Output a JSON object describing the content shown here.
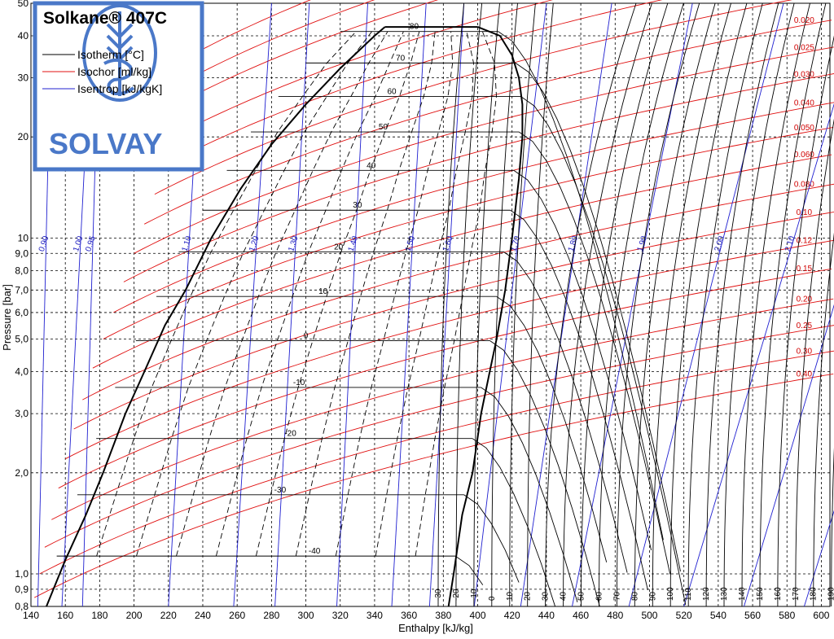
{
  "legend": {
    "title": "Solkane® 407C",
    "isotherm_label": "Isotherm [°C]",
    "isochor_label": "Isochor [ml/kg]",
    "isentrop_label": "Isentrop [kJ/kgK]",
    "brand": "SOLVAY"
  },
  "colors": {
    "isotherm": "#000000",
    "isochor": "#e01010",
    "isentrop": "#2020d0",
    "legend_frame": "#4a78c8",
    "brand": "#4a78c8"
  },
  "chart_data": {
    "type": "line",
    "chart_kind": "pressure-enthalpy diagram",
    "xlabel": "Enthalpy [kJ/kg]",
    "ylabel": "Pressure [bar]",
    "xlim": [
      140,
      605
    ],
    "ylim": [
      0.8,
      50
    ],
    "yscale": "log",
    "grid": true,
    "x_ticks": [
      "140",
      "160",
      "180",
      "200",
      "220",
      "240",
      "260",
      "280",
      "300",
      "320",
      "340",
      "360",
      "380",
      "400",
      "420",
      "440",
      "460",
      "480",
      "500",
      "520",
      "540",
      "560",
      "580",
      "600"
    ],
    "y_ticks": [
      {
        "value": 0.8,
        "label": "0,8"
      },
      {
        "value": 0.9,
        "label": "0,9"
      },
      {
        "value": 1.0,
        "label": "1,0"
      },
      {
        "value": 2.0,
        "label": "2,0"
      },
      {
        "value": 3.0,
        "label": "3,0"
      },
      {
        "value": 4.0,
        "label": "4,0"
      },
      {
        "value": 5.0,
        "label": "5,0"
      },
      {
        "value": 6.0,
        "label": "6,0"
      },
      {
        "value": 7.0,
        "label": "7,0"
      },
      {
        "value": 8.0,
        "label": "8,0"
      },
      {
        "value": 9.0,
        "label": "9,0"
      },
      {
        "value": 10,
        "label": "10"
      },
      {
        "value": 20,
        "label": "20"
      },
      {
        "value": 30,
        "label": "30"
      },
      {
        "value": 40,
        "label": "40"
      },
      {
        "value": 50,
        "label": "50"
      }
    ],
    "saturation_dome": {
      "liquid": [
        [
          149,
          0.8
        ],
        [
          160,
          1.1
        ],
        [
          172,
          1.5
        ],
        [
          182,
          2.0
        ],
        [
          195,
          3.0
        ],
        [
          206,
          4.0
        ],
        [
          218,
          5.5
        ],
        [
          230,
          7.0
        ],
        [
          245,
          10
        ],
        [
          262,
          14
        ],
        [
          280,
          19
        ],
        [
          300,
          25
        ],
        [
          320,
          32
        ],
        [
          340,
          40
        ],
        [
          346,
          42.5
        ]
      ],
      "vapor": [
        [
          383,
          0.8
        ],
        [
          386,
          1.0
        ],
        [
          391,
          1.5
        ],
        [
          397,
          2.0
        ],
        [
          402,
          3.0
        ],
        [
          407,
          4.0
        ],
        [
          411,
          5.0
        ],
        [
          416,
          7.0
        ],
        [
          420,
          10
        ],
        [
          424,
          15
        ],
        [
          426,
          20
        ],
        [
          426,
          25
        ],
        [
          424,
          30
        ],
        [
          420,
          35
        ],
        [
          413,
          40
        ],
        [
          400,
          42.5
        ]
      ],
      "critical_top": [
        [
          346,
          42.5
        ],
        [
          400,
          42.5
        ]
      ]
    },
    "isotherms_two_phase": [
      {
        "t": "-40",
        "p": 1.13,
        "h_liq": 155,
        "h_vap": 387,
        "label_h": 305
      },
      {
        "t": "-30",
        "p": 1.72,
        "h_liq": 167,
        "h_vap": 392,
        "label_h": 285
      },
      {
        "t": "-20",
        "p": 2.53,
        "h_liq": 178,
        "h_vap": 397,
        "label_h": 291
      },
      {
        "t": "-10",
        "p": 3.59,
        "h_liq": 189,
        "h_vap": 402,
        "label_h": 296
      },
      {
        "t": "0",
        "p": 4.95,
        "h_liq": 201,
        "h_vap": 407,
        "label_h": 300
      },
      {
        "t": "10",
        "p": 6.7,
        "h_liq": 213,
        "h_vap": 411,
        "label_h": 310
      },
      {
        "t": "20",
        "p": 9.1,
        "h_liq": 226,
        "h_vap": 415,
        "label_h": 319
      },
      {
        "t": "30",
        "p": 12.1,
        "h_liq": 240,
        "h_vap": 419,
        "label_h": 330
      },
      {
        "t": "40",
        "p": 15.9,
        "h_liq": 254,
        "h_vap": 421,
        "label_h": 338
      },
      {
        "t": "50",
        "p": 20.7,
        "h_liq": 268,
        "h_vap": 424,
        "label_h": 345
      },
      {
        "t": "60",
        "p": 26.4,
        "h_liq": 284,
        "h_vap": 425,
        "label_h": 350
      },
      {
        "t": "70",
        "p": 33.2,
        "h_liq": 300,
        "h_vap": 422,
        "label_h": 355
      },
      {
        "t": "80",
        "p": 41.2,
        "h_liq": 320,
        "h_vap": 412,
        "label_h": 363
      }
    ],
    "isotherms_superheat_bottom_labels": [
      "-30",
      "-20",
      "-10",
      "0",
      "10",
      "20",
      "30",
      "40",
      "50",
      "60",
      "70",
      "80",
      "90",
      "100",
      "110",
      "120",
      "130",
      "140",
      "150",
      "160",
      "170",
      "180",
      "190",
      "200"
    ],
    "isochors": [
      {
        "v": "0.0050",
        "h0": 240,
        "p0": 36.5
      },
      {
        "v": "0.0060",
        "h0": 233,
        "p0": 30.0
      },
      {
        "v": "0.0080",
        "h0": 228,
        "p0": 25.5
      },
      {
        "v": "0.0100",
        "h0": 222,
        "p0": 20.0
      },
      {
        "v": "0.012",
        "h0": 218,
        "p0": 16.5
      },
      {
        "v": "0.015",
        "h0": 212,
        "p0": 13.5
      },
      {
        "v": "0.020",
        "h0": 206,
        "p0": 11.0
      },
      {
        "v": "0.025",
        "h0": 200,
        "p0": 9.0
      },
      {
        "v": "0.030",
        "h0": 194,
        "p0": 7.4
      },
      {
        "v": "0.040",
        "h0": 188,
        "p0": 6.0
      },
      {
        "v": "0.050",
        "h0": 182,
        "p0": 5.0
      },
      {
        "v": "0.060",
        "h0": 176,
        "p0": 4.1
      },
      {
        "v": "0.080",
        "h0": 170,
        "p0": 3.3
      },
      {
        "v": "0.10",
        "h0": 165,
        "p0": 2.7
      },
      {
        "v": "0.12",
        "h0": 160,
        "p0": 2.2
      },
      {
        "v": "0.15",
        "h0": 156,
        "p0": 1.8
      },
      {
        "v": "0.20",
        "h0": 152,
        "p0": 1.45
      },
      {
        "v": "0.25",
        "h0": 148,
        "p0": 1.2
      },
      {
        "v": "0.30",
        "h0": 145,
        "p0": 1.0
      },
      {
        "v": "0.40",
        "h0": 142,
        "p0": 0.85
      }
    ],
    "isentropes": [
      {
        "s": "0.90",
        "h_bottom": 144,
        "h_top": 152
      },
      {
        "s": "0.95",
        "h_bottom": 170,
        "h_top": 180
      },
      {
        "s": "1.00",
        "h_bottom": 158,
        "h_top": 176
      },
      {
        "s": "1.10",
        "h_bottom": 220,
        "h_top": 240
      },
      {
        "s": "1.20",
        "h_bottom": 258,
        "h_top": 280
      },
      {
        "s": "1.30",
        "h_bottom": 282,
        "h_top": 302
      },
      {
        "s": "1.40",
        "h_bottom": 318,
        "h_top": 336
      },
      {
        "s": "1.50",
        "h_bottom": 350,
        "h_top": 370
      },
      {
        "s": "1.60",
        "h_bottom": 372,
        "h_top": 392
      },
      {
        "s": "1.70",
        "h_bottom": 398,
        "h_top": 440
      },
      {
        "s": "1.80",
        "h_bottom": 425,
        "h_top": 478
      },
      {
        "s": "1.90",
        "h_bottom": 455,
        "h_top": 525
      },
      {
        "s": "2.00",
        "h_bottom": 488,
        "h_top": 578
      },
      {
        "s": "2.10",
        "h_bottom": 520,
        "h_top": 625
      },
      {
        "s": "2.20",
        "h_bottom": 555,
        "h_top": 660
      },
      {
        "s": "2.30",
        "h_bottom": 590,
        "h_top": 700
      },
      {
        "s": "2.40",
        "h_bottom": 625,
        "h_top": 740
      }
    ]
  }
}
